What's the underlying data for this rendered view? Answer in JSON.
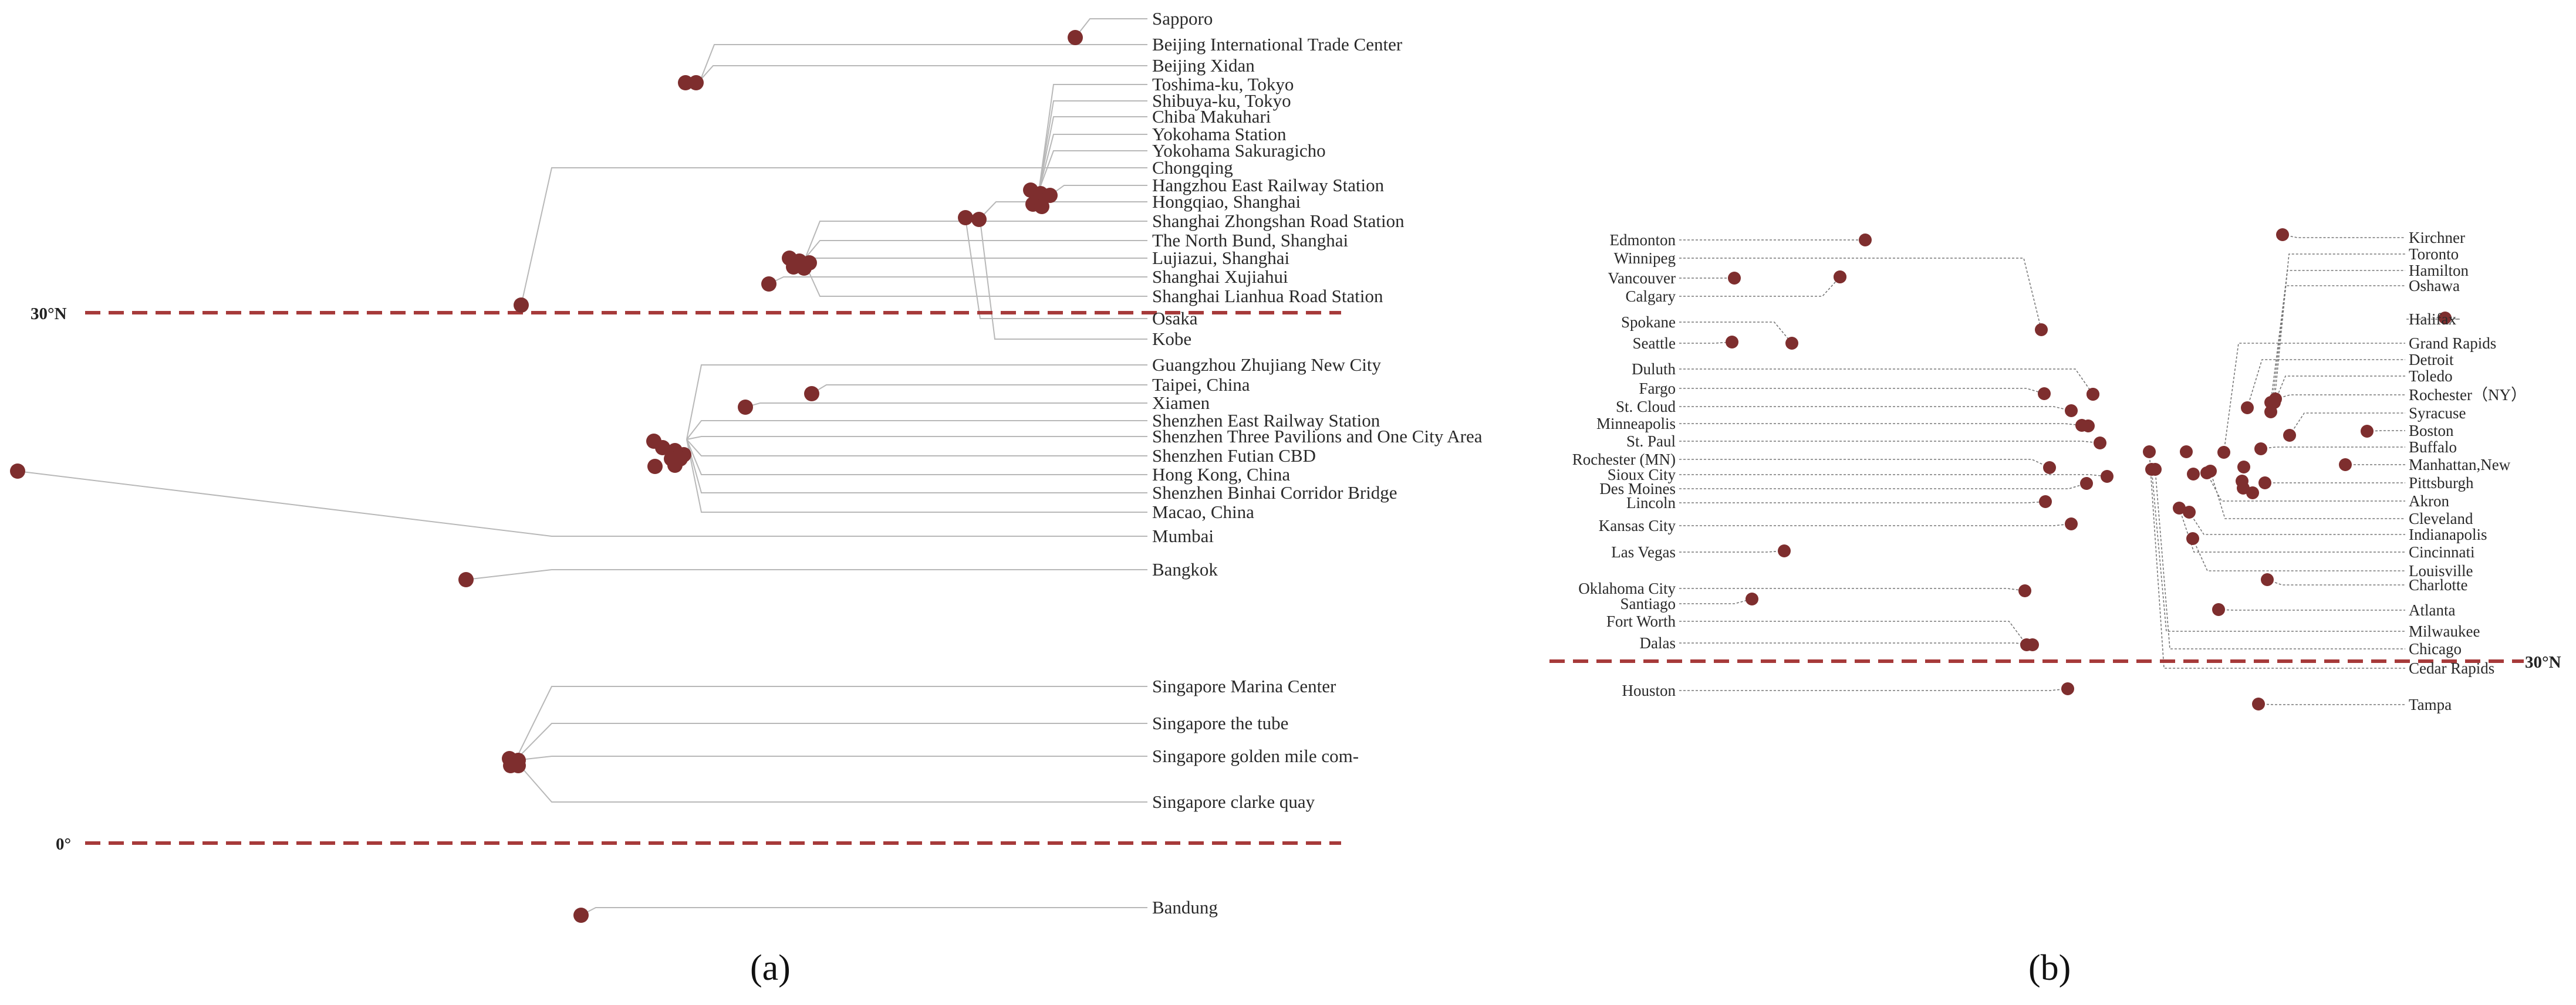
{
  "panel_a": {
    "caption": "(a)",
    "line_30n": "30°N",
    "line_0": "0°",
    "labels": [
      "Sapporo",
      "Beijing International Trade Center",
      "Beijing Xidan",
      "Toshima-ku, Tokyo",
      "Shibuya-ku, Tokyo",
      "Chiba Makuhari",
      "Yokohama Station",
      "Yokohama Sakuragicho",
      "Chongqing",
      "Hangzhou East Railway Station",
      "Hongqiao, Shanghai",
      "Shanghai Zhongshan Road Station",
      "The North Bund, Shanghai",
      "Lujiazui, Shanghai",
      "Shanghai Xujiahui",
      "Shanghai Lianhua Road Station",
      "Osaka",
      "Kobe",
      "Guangzhou Zhujiang New City",
      "Taipei, China",
      "Xiamen",
      "Shenzhen  East Railway Station",
      "Shenzhen Three Pavilions and One City Area",
      "Shenzhen Futian CBD",
      "Hong Kong, China",
      "Shenzhen Binhai Corridor Bridge",
      "Macao, China",
      "Mumbai",
      "Bangkok",
      "Singapore Marina Center",
      "Singapore the tube",
      "Singapore golden mile com-",
      "Singapore clarke quay",
      "Bandung"
    ]
  },
  "panel_b": {
    "caption": "(b)",
    "line_30n": "30°N",
    "left_labels": [
      "Edmonton",
      "Winnipeg",
      "Vancouver",
      "Calgary",
      "Spokane",
      "Seattle",
      "Duluth",
      "Fargo",
      "St. Cloud",
      "Minneapolis",
      "St. Paul",
      "Rochester (MN)",
      "Sioux City",
      "Des Moines",
      "Lincoln",
      "Kansas City",
      "Las Vegas",
      "Oklahoma City",
      "Santiago",
      "Fort Worth",
      "Dalas",
      "Houston"
    ],
    "right_labels": [
      "Kirchner",
      "Toronto",
      "Hamilton",
      "Oshawa",
      "Halifax",
      "Grand Rapids",
      "Detroit",
      "Toledo",
      "Rochester（NY）",
      "Syracuse",
      "Boston",
      "Buffalo",
      "Manhattan,New",
      "Pittsburgh",
      "Akron",
      "Cleveland",
      "Indianapolis",
      "Cincinnati",
      "Louisville",
      "Charlotte",
      "Atlanta",
      "Milwaukee",
      "Chicago",
      "Cedar Rapids",
      "Tampa"
    ]
  }
}
